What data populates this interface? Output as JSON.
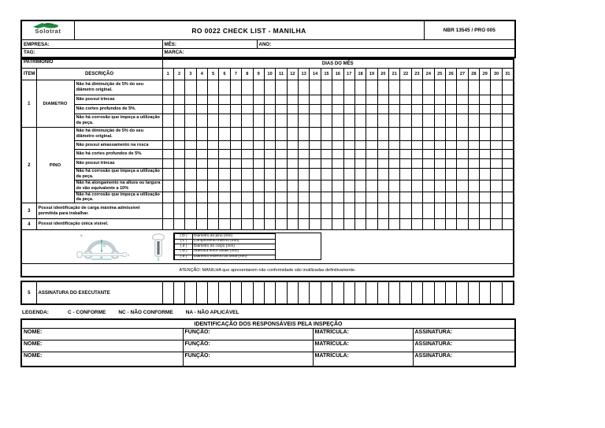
{
  "colors": {
    "logo_green": "#1e8a3c",
    "logo_dark_green": "#145c28",
    "diagram_gray": "#c3ced3",
    "diagram_teal": "#35a0a0",
    "border": "#000000"
  },
  "header": {
    "logo_text": "Solotrat",
    "title": "RO 0022 CHECK LIST - MANILHA",
    "doc_ref": "NBR 13545 / PRO 005",
    "empresa_label": "EMPRESA:",
    "mes_label": "MÊS:",
    "ano_label": "ANO:",
    "tag_label": "TAG:",
    "marca_label": "MARCA:",
    "patrimonio_label": "PATRIMONIO"
  },
  "checklist": {
    "days_header": "DIAS DO MÊS",
    "col_item": "ITEM",
    "col_desc": "DESCRIÇÃO",
    "days": [
      1,
      2,
      3,
      4,
      5,
      6,
      7,
      8,
      9,
      10,
      11,
      12,
      13,
      14,
      15,
      16,
      17,
      18,
      19,
      20,
      21,
      22,
      23,
      24,
      25,
      26,
      27,
      28,
      29,
      30,
      31
    ],
    "items": [
      {
        "num": "1",
        "category": "DIAMETRO",
        "rows": [
          "Não há diminuição de 5% do seu diâmetro original.",
          "Não possui trincas",
          "Não cortes profundos de 5%.",
          "Não há corrosão que impeça a utilização da peça."
        ]
      },
      {
        "num": "2",
        "category": "PINO",
        "rows": [
          "Não há diminuição de 5% do seu diâmetro original.",
          "Não possui amassamento na rosca",
          "Não há cortes profundos de 5%.",
          "Não possui trincas",
          "Não há corrosão que impeça a utilização da peça.",
          "Não há alongamento na altura ou largura do vão equivalente a 10%",
          "Não há corrosão que impeça a utilização da peça."
        ]
      },
      {
        "num": "3",
        "category": null,
        "rows": [
          "Possui identificação de carga máxima admissível permitida para trabalhar."
        ]
      },
      {
        "num": "4",
        "category": null,
        "rows": [
          "Possui identificação única visível."
        ]
      }
    ],
    "signature_row": {
      "num": "5",
      "label": "ASSINATURA DO EXECUTANTE"
    }
  },
  "diagram": {
    "legend": [
      {
        "key": "( D )",
        "label": "Diametro do pino (mm)"
      },
      {
        "key": "( L )",
        "label": "Comprimento interno (mm)"
      },
      {
        "key": "( d )",
        "label": "Diâmetro do corpo (mm)"
      },
      {
        "key": "( w )",
        "label": "Abertura entre olhais (mm)"
      },
      {
        "key": "( a )",
        "label": "Diametro externo do olhal (mm)"
      }
    ],
    "attention": "ATENÇÃO: MANILHA que apresentarem não conformidade são inutilizadas definitivamente."
  },
  "legend_line": {
    "label": "LEGENDA:",
    "items": [
      "C - CONFORME",
      "NC - NÃO CONFORME",
      "NA - NÃO APLICÁVEL"
    ]
  },
  "responsaveis": {
    "title": "IDENTIFICAÇÃO DOS RESPONSÁVEIS PELA INSPEÇÃO",
    "rows": [
      {
        "nome": "NOME:",
        "funcao": "FUNÇÃO:",
        "matricula": "MATRÍCULA:",
        "assinatura": "ASSINATURA:"
      },
      {
        "nome": "NOME:",
        "funcao": "FUNÇÃO:",
        "matricula": "MATRÍCULA:",
        "assinatura": "ASSINATURA:"
      },
      {
        "nome": "NOME:",
        "funcao": "FUNÇÃO:",
        "matricula": "MATRÍCULA:",
        "assinatura": "ASSINATURA:"
      }
    ]
  }
}
